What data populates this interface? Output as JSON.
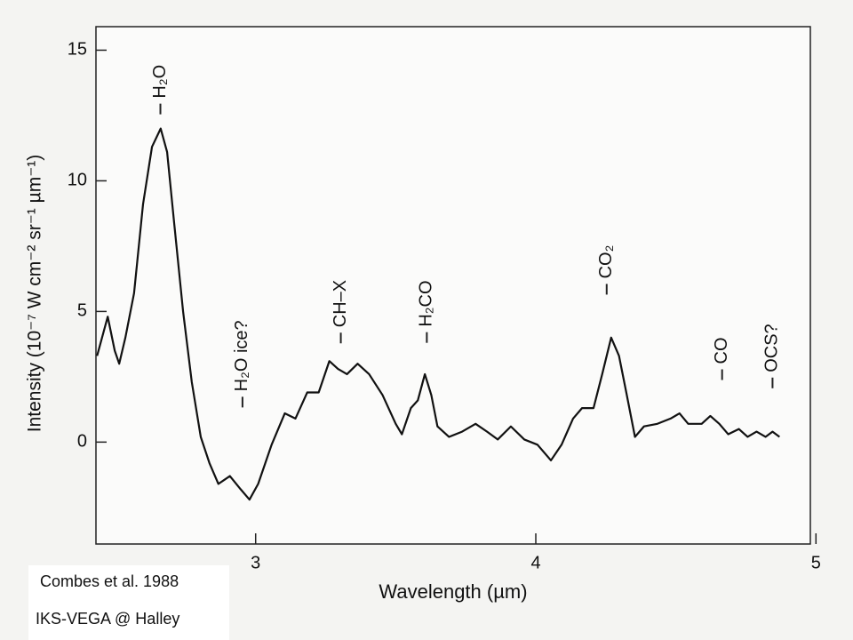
{
  "chart_data": {
    "type": "line",
    "xlabel": "Wavelength (µm)",
    "ylabel": "Intensity (10⁻⁷ W cm⁻² sr⁻¹ µm⁻¹)",
    "x": [
      2.434,
      2.472,
      2.497,
      2.513,
      2.535,
      2.566,
      2.598,
      2.63,
      2.661,
      2.684,
      2.709,
      2.741,
      2.772,
      2.804,
      2.835,
      2.867,
      2.908,
      2.946,
      2.978,
      3.009,
      3.057,
      3.104,
      3.142,
      3.184,
      3.225,
      3.263,
      3.294,
      3.326,
      3.364,
      3.405,
      3.453,
      3.5,
      3.522,
      3.554,
      3.579,
      3.604,
      3.627,
      3.649,
      3.69,
      3.737,
      3.785,
      3.826,
      3.864,
      3.911,
      3.959,
      4.006,
      4.054,
      4.092,
      4.133,
      4.165,
      4.206,
      4.237,
      4.269,
      4.297,
      4.323,
      4.354,
      4.386,
      4.434,
      4.481,
      4.513,
      4.544,
      4.592,
      4.623,
      4.655,
      4.687,
      4.725,
      4.756,
      4.788,
      4.82,
      4.845,
      4.87
    ],
    "values": [
      3.3,
      4.8,
      3.5,
      3.0,
      4.0,
      5.7,
      9.1,
      11.3,
      12.0,
      11.1,
      8.4,
      5.0,
      2.3,
      0.2,
      -0.8,
      -1.6,
      -1.3,
      -1.8,
      -2.2,
      -1.6,
      -0.1,
      1.1,
      0.9,
      1.9,
      1.9,
      3.1,
      2.8,
      2.6,
      3.0,
      2.6,
      1.8,
      0.7,
      0.3,
      1.3,
      1.6,
      2.6,
      1.8,
      0.6,
      0.2,
      0.4,
      0.7,
      0.4,
      0.1,
      0.6,
      0.1,
      -0.1,
      -0.7,
      -0.1,
      0.9,
      1.3,
      1.3,
      2.6,
      4.0,
      3.3,
      1.9,
      0.2,
      0.6,
      0.7,
      0.9,
      1.1,
      0.7,
      0.7,
      1.0,
      0.7,
      0.3,
      0.5,
      0.2,
      0.4,
      0.2,
      0.4,
      0.2
    ],
    "color": "#111111",
    "xlim": [
      2.43,
      4.98
    ],
    "xticks": [
      3,
      4,
      5
    ],
    "ylim": [
      -3.9,
      15.9
    ],
    "yticks": [
      0,
      5,
      10,
      15
    ],
    "annotations": [
      {
        "text": "H₂O",
        "x": 2.66,
        "y": 13.8
      },
      {
        "text": "H₂O ice?",
        "x": 2.953,
        "y": 3.3
      },
      {
        "text": "CH–X",
        "x": 3.304,
        "y": 5.3
      },
      {
        "text": "H₂CO",
        "x": 3.611,
        "y": 5.3
      },
      {
        "text": "CO₂",
        "x": 4.253,
        "y": 6.9
      },
      {
        "text": "CO",
        "x": 4.665,
        "y": 3.5
      },
      {
        "text": "OCS?",
        "x": 4.845,
        "y": 3.6
      }
    ],
    "notes": [
      "Combes et al. 1988",
      "IKS-VEGA @ Halley"
    ]
  }
}
